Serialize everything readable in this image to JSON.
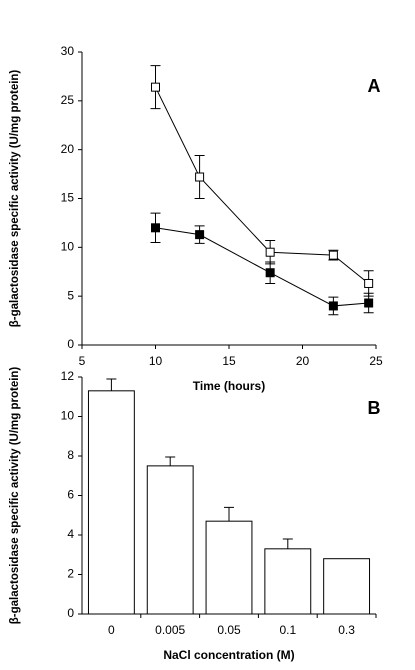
{
  "chart_data": [
    {
      "type": "line",
      "panel_label": "A",
      "y_label": "β-galactosidase specific activity (U/mg protein)",
      "x_label": "Time (hours)",
      "x": [
        10,
        13,
        17.8,
        22.1,
        24.5
      ],
      "series": [
        {
          "color": "#ffffff",
          "values": [
            26.4,
            17.2,
            9.5,
            9.2,
            6.3
          ],
          "errors": [
            2.2,
            2.2,
            1.2,
            0.5,
            1.3
          ]
        },
        {
          "color": "#000000",
          "values": [
            12,
            11.3,
            7.4,
            4,
            4.3
          ],
          "errors": [
            1.5,
            0.9,
            1.1,
            0.9,
            1
          ]
        }
      ],
      "xlim": [
        5,
        25
      ],
      "xticks": [
        5,
        10,
        15,
        20,
        25
      ],
      "ylim": [
        0,
        30
      ],
      "yticks": [
        0,
        5,
        10,
        15,
        20,
        25,
        30
      ],
      "error_direction": "both"
    },
    {
      "type": "bar",
      "panel_label": "B",
      "y_label": "β-galactosidase specific activity (U/mg protein)",
      "x_label": "NaCl concentration (M)",
      "categories": [
        "0",
        "0.005",
        "0.05",
        "0.1",
        "0.3"
      ],
      "values": [
        11.3,
        7.5,
        4.7,
        3.3,
        2.8
      ],
      "errors": [
        0.6,
        0.45,
        0.7,
        0.5,
        null
      ],
      "color": "#ffffff",
      "ylim": [
        0,
        12
      ],
      "yticks": [
        0,
        2,
        4,
        6,
        8,
        10,
        12
      ],
      "error_direction": "up"
    }
  ]
}
